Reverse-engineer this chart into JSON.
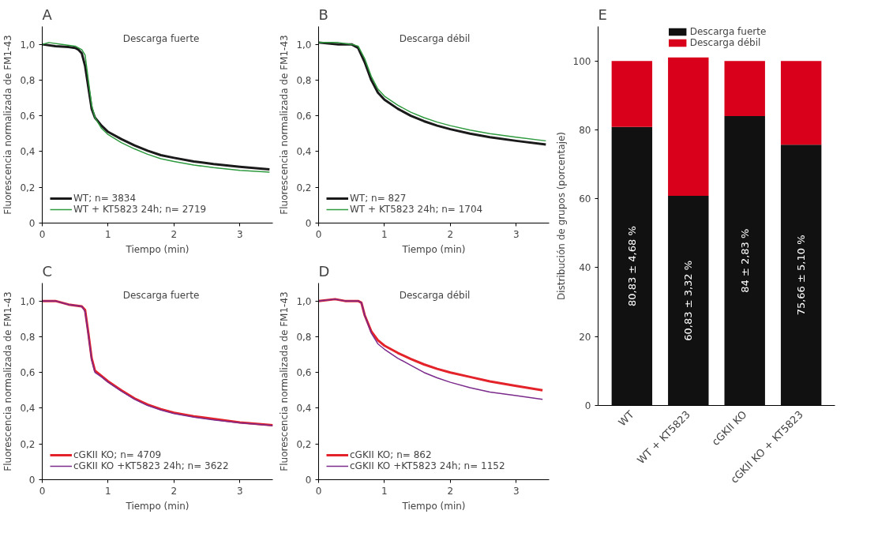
{
  "chart_data": [
    {
      "type": "line",
      "title": "A",
      "xlabel": "Tiempo (min)",
      "ylabel": "Fluorescencia normalizada de FM1-43",
      "annotations": [
        "Descarga fuerte"
      ],
      "xlim": [
        0,
        3.5
      ],
      "ylim": [
        0,
        1.1
      ],
      "xticks": [
        0,
        1,
        2,
        3
      ],
      "yticks": [
        0,
        {
          "value": 0.2,
          "label": "0,2"
        },
        {
          "value": 0.4,
          "label": "0,4"
        },
        {
          "value": 0.6,
          "label": "0,6"
        },
        {
          "value": 0.8,
          "label": "0,8"
        },
        {
          "value": 1.0,
          "label": "1,0"
        }
      ],
      "legend": "bottom left",
      "grid": false,
      "series": [
        {
          "name": "WT; n= 3834",
          "color": "#1a1a1a",
          "x": [
            0,
            0.2,
            0.4,
            0.5,
            0.55,
            0.6,
            0.65,
            0.7,
            0.75,
            0.8,
            0.9,
            1.0,
            1.2,
            1.4,
            1.6,
            1.8,
            2.0,
            2.3,
            2.6,
            3.0,
            3.45
          ],
          "values": [
            1.0,
            0.99,
            0.985,
            0.98,
            0.97,
            0.95,
            0.88,
            0.76,
            0.64,
            0.59,
            0.545,
            0.51,
            0.47,
            0.435,
            0.405,
            0.38,
            0.365,
            0.345,
            0.33,
            0.315,
            0.3
          ]
        },
        {
          "name": "WT + KT5823 24h; n= 2719",
          "color": "#2e9a3e",
          "x": [
            0,
            0.1,
            0.3,
            0.5,
            0.6,
            0.65,
            0.7,
            0.75,
            0.8,
            0.9,
            1.0,
            1.2,
            1.4,
            1.6,
            1.8,
            2.0,
            2.3,
            2.6,
            3.0,
            3.45
          ],
          "values": [
            1.0,
            1.01,
            1.0,
            0.99,
            0.97,
            0.94,
            0.8,
            0.66,
            0.59,
            0.53,
            0.495,
            0.45,
            0.415,
            0.385,
            0.36,
            0.345,
            0.325,
            0.31,
            0.295,
            0.285
          ]
        }
      ]
    },
    {
      "type": "line",
      "title": "B",
      "xlabel": "Tiempo (min)",
      "ylabel": "Fluorescencia normalizada de FM1-43",
      "annotations": [
        "Descarga débil"
      ],
      "xlim": [
        0,
        3.5
      ],
      "ylim": [
        0,
        1.1
      ],
      "xticks": [
        0,
        1,
        2,
        3
      ],
      "yticks": [
        0,
        {
          "value": 0.2,
          "label": "0,2"
        },
        {
          "value": 0.4,
          "label": "0,4"
        },
        {
          "value": 0.6,
          "label": "0,6"
        },
        {
          "value": 0.8,
          "label": "0,8"
        },
        {
          "value": 1.0,
          "label": "1,0"
        }
      ],
      "legend": "bottom left",
      "grid": false,
      "series": [
        {
          "name": "WT; n= 827",
          "color": "#1a1a1a",
          "x": [
            0,
            0.3,
            0.5,
            0.6,
            0.7,
            0.8,
            0.9,
            1.0,
            1.2,
            1.4,
            1.6,
            1.8,
            2.0,
            2.3,
            2.6,
            3.0,
            3.45
          ],
          "values": [
            1.01,
            1.0,
            1.0,
            0.98,
            0.9,
            0.8,
            0.73,
            0.69,
            0.64,
            0.6,
            0.57,
            0.545,
            0.525,
            0.5,
            0.48,
            0.46,
            0.44
          ]
        },
        {
          "name": "WT + KT5823 24h; n= 1704",
          "color": "#2e9a3e",
          "x": [
            0,
            0.3,
            0.5,
            0.6,
            0.7,
            0.8,
            0.9,
            1.0,
            1.2,
            1.4,
            1.6,
            1.8,
            2.0,
            2.3,
            2.6,
            3.0,
            3.45
          ],
          "values": [
            1.01,
            1.01,
            1.0,
            0.99,
            0.92,
            0.82,
            0.75,
            0.71,
            0.66,
            0.62,
            0.59,
            0.565,
            0.545,
            0.52,
            0.5,
            0.48,
            0.46
          ]
        }
      ]
    },
    {
      "type": "line",
      "title": "C",
      "xlabel": "Tiempo (min)",
      "ylabel": "Fluorescencia normalizada de FM1-43",
      "annotations": [
        "Descarga fuerte"
      ],
      "xlim": [
        0,
        3.5
      ],
      "ylim": [
        0,
        1.1
      ],
      "xticks": [
        0,
        1,
        2,
        3
      ],
      "yticks": [
        0,
        {
          "value": 0.2,
          "label": "0,2"
        },
        {
          "value": 0.4,
          "label": "0,4"
        },
        {
          "value": 0.6,
          "label": "0,6"
        },
        {
          "value": 0.8,
          "label": "0,8"
        },
        {
          "value": 1.0,
          "label": "1,0"
        }
      ],
      "legend": "bottom left",
      "grid": false,
      "series": [
        {
          "name": "cGKII KO; n= 4709",
          "color": "#e3222a",
          "x": [
            0,
            0.2,
            0.4,
            0.6,
            0.65,
            0.7,
            0.75,
            0.8,
            0.9,
            1.0,
            1.2,
            1.4,
            1.6,
            1.8,
            2.0,
            2.3,
            2.6,
            3.0,
            3.5
          ],
          "values": [
            1.0,
            1.0,
            0.98,
            0.97,
            0.95,
            0.82,
            0.68,
            0.61,
            0.58,
            0.55,
            0.5,
            0.455,
            0.42,
            0.395,
            0.375,
            0.355,
            0.34,
            0.32,
            0.305
          ]
        },
        {
          "name": "cGKII KO +KT5823 24h; n= 3622",
          "color": "#7b2a8c",
          "x": [
            0,
            0.2,
            0.4,
            0.6,
            0.65,
            0.7,
            0.75,
            0.8,
            0.9,
            1.0,
            1.2,
            1.4,
            1.6,
            1.8,
            2.0,
            2.3,
            2.6,
            3.0,
            3.5
          ],
          "values": [
            1.0,
            1.0,
            0.98,
            0.97,
            0.94,
            0.81,
            0.67,
            0.6,
            0.575,
            0.545,
            0.495,
            0.45,
            0.415,
            0.39,
            0.37,
            0.35,
            0.335,
            0.318,
            0.303
          ]
        }
      ]
    },
    {
      "type": "line",
      "title": "D",
      "xlabel": "Tiempo (min)",
      "ylabel": "Fluorescencia normalizada de FM1-43",
      "annotations": [
        "Descarga débil"
      ],
      "xlim": [
        0,
        3.5
      ],
      "ylim": [
        0,
        1.1
      ],
      "xticks": [
        0,
        1,
        2,
        3
      ],
      "yticks": [
        0,
        {
          "value": 0.2,
          "label": "0,2"
        },
        {
          "value": 0.4,
          "label": "0,4"
        },
        {
          "value": 0.6,
          "label": "0,6"
        },
        {
          "value": 0.8,
          "label": "0,8"
        },
        {
          "value": 1.0,
          "label": "1,0"
        }
      ],
      "legend": "bottom left",
      "grid": false,
      "series": [
        {
          "name": "cGKII KO; n= 862",
          "color": "#e3222a",
          "x": [
            0,
            0.25,
            0.4,
            0.6,
            0.65,
            0.7,
            0.8,
            0.9,
            1.0,
            1.2,
            1.4,
            1.6,
            1.8,
            2.0,
            2.3,
            2.6,
            3.0,
            3.4
          ],
          "values": [
            1.0,
            1.01,
            1.0,
            1.0,
            0.99,
            0.92,
            0.83,
            0.78,
            0.75,
            0.71,
            0.675,
            0.645,
            0.62,
            0.6,
            0.575,
            0.55,
            0.525,
            0.5
          ]
        },
        {
          "name": "cGKII KO +KT5823 24h; n= 1152",
          "color": "#7b2a8c",
          "x": [
            0,
            0.25,
            0.4,
            0.6,
            0.65,
            0.7,
            0.8,
            0.9,
            1.0,
            1.2,
            1.4,
            1.6,
            1.8,
            2.0,
            2.3,
            2.6,
            3.0,
            3.4
          ],
          "values": [
            1.0,
            1.01,
            1.0,
            1.0,
            0.99,
            0.92,
            0.82,
            0.76,
            0.73,
            0.68,
            0.64,
            0.6,
            0.57,
            0.545,
            0.515,
            0.49,
            0.47,
            0.45
          ]
        }
      ]
    },
    {
      "type": "bar",
      "title": "E",
      "ylabel": "Distribución de grupos (porcentaje)",
      "categories": [
        "WT",
        "WT + KT5823",
        "cGKII KO",
        "cGKII KO + KT5823"
      ],
      "stacked": true,
      "ylim": [
        0,
        110
      ],
      "yticks": [
        0,
        20,
        40,
        60,
        80,
        100
      ],
      "legend": "top",
      "grid": false,
      "series": [
        {
          "name": "Descarga fuerte",
          "color": "#111111",
          "values": [
            80.83,
            60.83,
            84,
            75.66
          ],
          "value_labels": [
            "80,83 ± 4,68 %",
            "60,83 ± 3,32 %",
            "84 ± 2,83 %",
            "75,66 ± 5,10 %"
          ]
        },
        {
          "name": "Descarga débil",
          "color": "#d9001b",
          "values": [
            19.17,
            40.17,
            16,
            24.34
          ]
        }
      ]
    }
  ]
}
